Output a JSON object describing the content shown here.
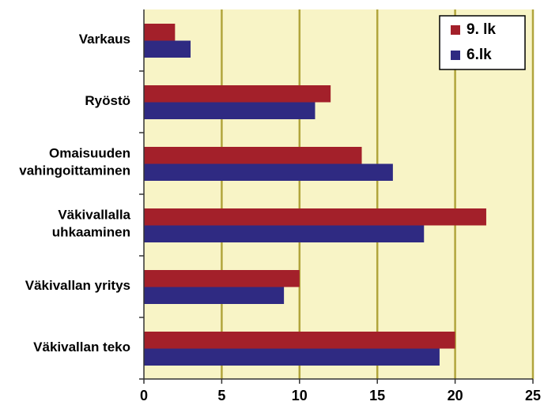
{
  "chart_data": {
    "type": "barh",
    "categories": [
      "Varkaus",
      "Ryöstö",
      "Omaisuuden\nvahingoittaminen",
      "Väkivallalla\nuhkaaminen",
      "Väkivallan yritys",
      "Väkivallan teko"
    ],
    "series": [
      {
        "name": "9. lk",
        "color": "#a3202a",
        "values": [
          2,
          12,
          14,
          22,
          10,
          20
        ]
      },
      {
        "name": "6.lk",
        "color": "#2f2a82",
        "values": [
          3,
          11,
          16,
          18,
          9,
          19
        ]
      }
    ],
    "xlim": [
      0,
      25
    ],
    "xticks": [
      0,
      5,
      10,
      15,
      20,
      25
    ],
    "grid": true,
    "legend": "upper right"
  }
}
